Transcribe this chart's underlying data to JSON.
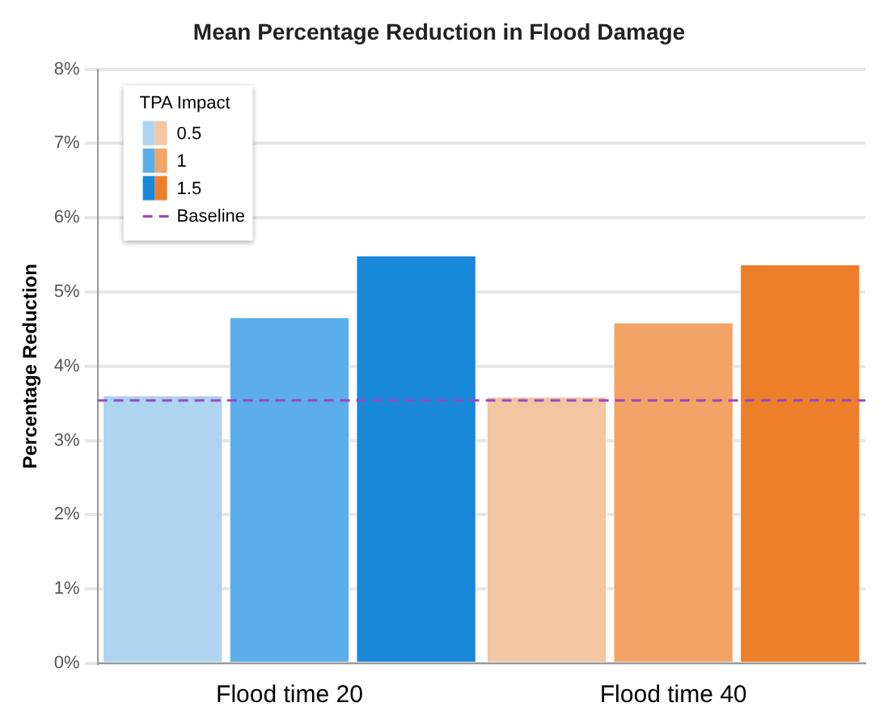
{
  "chart_data": {
    "type": "bar",
    "title": "Mean Percentage Reduction in Flood Damage",
    "ylabel": "Percentage Reduction",
    "legend_title": "TPA Impact",
    "categories": [
      "Flood time 20",
      "Flood time 40"
    ],
    "series": [
      {
        "name": "0.5",
        "colors": [
          "#aed4ef",
          "#f3c5a1"
        ],
        "values": [
          3.62,
          3.6
        ]
      },
      {
        "name": "1",
        "colors": [
          "#5caeea",
          "#f2a466"
        ],
        "values": [
          4.67,
          4.6
        ]
      },
      {
        "name": "1.5",
        "colors": [
          "#1a88d8",
          "#ee7f2a"
        ],
        "values": [
          5.5,
          5.38
        ]
      }
    ],
    "ylim": [
      0,
      8
    ],
    "yticks": [
      {
        "value": 0,
        "label": "0%"
      },
      {
        "value": 1,
        "label": "1%"
      },
      {
        "value": 2,
        "label": "2%"
      },
      {
        "value": 3,
        "label": "3%"
      },
      {
        "value": 4,
        "label": "4%"
      },
      {
        "value": 5,
        "label": "5%"
      },
      {
        "value": 6,
        "label": "6%"
      },
      {
        "value": 7,
        "label": "7%"
      },
      {
        "value": 8,
        "label": "8%"
      }
    ],
    "ref_lines": [
      {
        "axis": "y",
        "value": 3.54,
        "label": "Baseline",
        "color": "#9b45c4",
        "line_style": "dashed"
      }
    ],
    "grid": "y",
    "legend": "top left"
  }
}
